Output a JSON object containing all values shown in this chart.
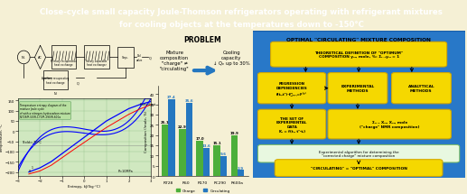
{
  "title_line1": "Close-cycle small capacity Joule-Thomson refrigerators operating with refrigerant mixtures",
  "title_line2": "for cooling objects at the temperatures down to -150°C",
  "title_bg": "#2271b8",
  "title_color": "white",
  "problem_title": "PROBLEM",
  "optimal_title": "OPTIMAL \"CIRCULATING\" MIXTURE COMPOSITION",
  "mixture_text": "Mixture\ncomposition\n\"charge\" ≠\n\"circulating\"",
  "cooling_text": "Cooling\ncapacity\n↓ Qₑ up to 30%",
  "bar_categories": [
    "R728",
    "R50",
    "R170",
    "RC290",
    "R600a"
  ],
  "bar_charge": [
    25.1,
    22.9,
    17.0,
    15.1,
    19.9
  ],
  "bar_circulating": [
    37.4,
    35.6,
    13.6,
    9.6,
    2.9
  ],
  "bar_color_charge": "#4caf3a",
  "bar_color_circulating": "#2577c0",
  "ylabel": "Composition (/mole, %)",
  "bg_cream": "#f5f0d5",
  "bg_blue": "#2070ba",
  "arrow_color": "#2577c0",
  "yellow_box": "#f5d800",
  "yellow_border": "#d4a800",
  "opt_bg": "#2070ba",
  "white_box": "#ddf5cc",
  "ts_bg": "#d0e8c0"
}
